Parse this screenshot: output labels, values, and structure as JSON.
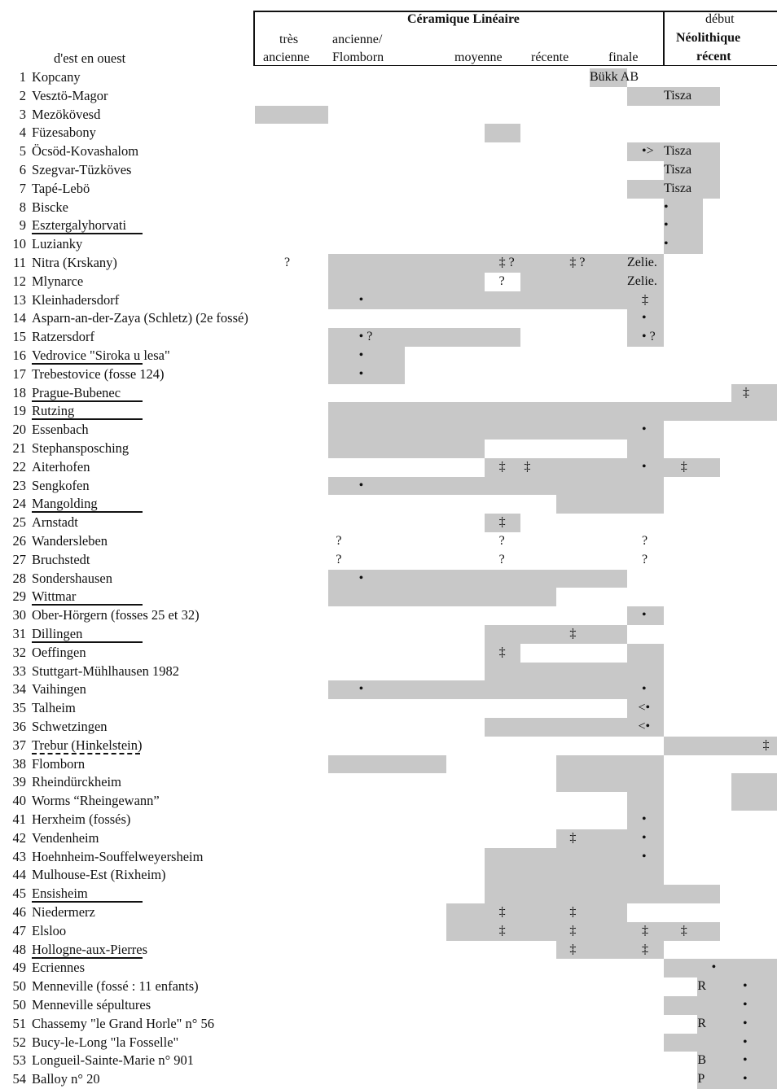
{
  "header": {
    "group_title": "Céramique Linéaire",
    "col_tres_1": "très",
    "col_tres_2": "ancienne",
    "col_anc_1": "ancienne/",
    "col_anc_2": "Flomborn",
    "col_moyenne": "moyenne",
    "col_recente": "récente",
    "col_finale": "finale",
    "neo_1": "début",
    "neo_2": "Néolithique",
    "neo_3": "récent",
    "order_label": "d'est en ouest"
  },
  "rows": [
    {
      "num": "1",
      "name": "Kopcany",
      "underline": "none",
      "shade": [
        [
          7,
          8
        ]
      ],
      "marks": [
        {
          "col": 7,
          "text": "Bükk AB"
        }
      ]
    },
    {
      "num": "2",
      "name": "Vesztö-Magor",
      "underline": "none",
      "shade": [
        [
          8,
          10
        ]
      ],
      "marks": [
        {
          "col": 9,
          "text": "Tisza"
        }
      ]
    },
    {
      "num": "3",
      "name": "Mezökövesd",
      "underline": "none",
      "shade": [
        [
          0,
          1
        ]
      ],
      "marks": []
    },
    {
      "num": "4",
      "name": "Füzesabony",
      "underline": "none",
      "shade": [
        [
          4,
          5
        ]
      ],
      "marks": []
    },
    {
      "num": "5",
      "name": "Öcsöd-Kovashalom",
      "underline": "none",
      "shade": [
        [
          8,
          10
        ]
      ],
      "marks": [
        {
          "col": 8.4,
          "text": "•>"
        },
        {
          "col": 9,
          "text": "Tisza"
        }
      ]
    },
    {
      "num": "6",
      "name": "Szegvar-Tüzköves",
      "underline": "none",
      "shade": [
        [
          9,
          10
        ]
      ],
      "marks": [
        {
          "col": 9,
          "text": "Tisza"
        }
      ]
    },
    {
      "num": "7",
      "name": "Tapé-Lebö",
      "underline": "none",
      "shade": [
        [
          8,
          10
        ]
      ],
      "marks": [
        {
          "col": 9,
          "text": "Tisza"
        }
      ]
    },
    {
      "num": "8",
      "name": "Biscke",
      "underline": "none",
      "shade": [
        [
          9,
          9.7
        ]
      ],
      "marks": [
        {
          "col": 9,
          "text": "•"
        }
      ]
    },
    {
      "num": "9",
      "name": "Esztergalyhorvati",
      "underline": "solid",
      "shade": [
        [
          9,
          9.7
        ]
      ],
      "marks": [
        {
          "col": 9,
          "text": "•"
        }
      ]
    },
    {
      "num": "10",
      "name": "Luzianky",
      "underline": "none",
      "shade": [
        [
          9,
          9.7
        ]
      ],
      "marks": [
        {
          "col": 9,
          "text": "•"
        }
      ]
    },
    {
      "num": "11",
      "name": "Nitra (Krskany)",
      "underline": "none",
      "shade": [
        [
          1,
          9
        ]
      ],
      "marks": [
        {
          "col": 0.4,
          "text": "?"
        },
        {
          "col": 4.4,
          "text": "‡ ?"
        },
        {
          "col": 6.4,
          "text": "‡ ?"
        },
        {
          "col": 8,
          "text": "Zelie."
        }
      ]
    },
    {
      "num": "12",
      "name": "Mlynarce",
      "underline": "none",
      "shade": [
        [
          1,
          4
        ],
        [
          5,
          9
        ]
      ],
      "marks": [
        {
          "col": 4.4,
          "text": "?"
        },
        {
          "col": 8,
          "text": "Zelie."
        }
      ]
    },
    {
      "num": "13",
      "name": "Kleinhadersdorf",
      "underline": "none",
      "shade": [
        [
          1,
          9
        ]
      ],
      "marks": [
        {
          "col": 1.4,
          "text": "•"
        },
        {
          "col": 8.4,
          "text": "‡"
        }
      ]
    },
    {
      "num": "14",
      "name": "Asparn-an-der-Zaya (Schletz) (2e fossé)",
      "underline": "none",
      "shade": [
        [
          8,
          9
        ]
      ],
      "marks": [
        {
          "col": 8.4,
          "text": "•"
        }
      ]
    },
    {
      "num": "15",
      "name": "Ratzersdorf",
      "underline": "none",
      "shade": [
        [
          1,
          5
        ],
        [
          8,
          9
        ]
      ],
      "marks": [
        {
          "col": 1.4,
          "text": "• ?"
        },
        {
          "col": 8.4,
          "text": "• ?"
        }
      ]
    },
    {
      "num": "16",
      "name": "Vedrovice \"Siroka u lesa\"",
      "underline": "solid",
      "shade": [
        [
          1,
          2
        ]
      ],
      "marks": [
        {
          "col": 1.4,
          "text": "•"
        }
      ]
    },
    {
      "num": "17",
      "name": "Trebestovice (fosse 124)",
      "underline": "none",
      "shade": [
        [
          1,
          2
        ]
      ],
      "marks": [
        {
          "col": 1.4,
          "text": "•"
        }
      ]
    },
    {
      "num": "18",
      "name": "Prague-Bubenec",
      "underline": "solid",
      "shade": [
        [
          10.2,
          11
        ]
      ],
      "marks": [
        {
          "col": 10.4,
          "text": "‡"
        }
      ]
    },
    {
      "num": "19",
      "name": "Rutzing",
      "underline": "solid",
      "shade": [
        [
          1,
          11
        ]
      ],
      "marks": []
    },
    {
      "num": "20",
      "name": "Essenbach",
      "underline": "none",
      "shade": [
        [
          1,
          9
        ]
      ],
      "marks": [
        {
          "col": 8.4,
          "text": "•"
        }
      ]
    },
    {
      "num": "21",
      "name": "Stephansposching",
      "underline": "none",
      "shade": [
        [
          1,
          4
        ],
        [
          8,
          9
        ]
      ],
      "marks": []
    },
    {
      "num": "22",
      "name": "Aiterhofen",
      "underline": "none",
      "shade": [
        [
          4,
          10
        ]
      ],
      "marks": [
        {
          "col": 4.4,
          "text": "‡"
        },
        {
          "col": 5.1,
          "text": "‡"
        },
        {
          "col": 8.4,
          "text": "•"
        },
        {
          "col": 9.3,
          "text": "‡"
        }
      ]
    },
    {
      "num": "23",
      "name": "Sengkofen",
      "underline": "none",
      "shade": [
        [
          1,
          9
        ]
      ],
      "marks": [
        {
          "col": 1.4,
          "text": "•"
        }
      ]
    },
    {
      "num": "24",
      "name": "Mangolding",
      "underline": "solid",
      "shade": [
        [
          6,
          9
        ]
      ],
      "marks": []
    },
    {
      "num": "25",
      "name": "Arnstadt",
      "underline": "none",
      "shade": [
        [
          4,
          5
        ]
      ],
      "marks": [
        {
          "col": 4.4,
          "text": "‡"
        }
      ]
    },
    {
      "num": "26",
      "name": "Wandersleben",
      "underline": "none",
      "shade": [],
      "marks": [
        {
          "col": 1.1,
          "text": "?"
        },
        {
          "col": 4.4,
          "text": "?"
        },
        {
          "col": 8.4,
          "text": "?"
        }
      ]
    },
    {
      "num": "27",
      "name": "Bruchstedt",
      "underline": "none",
      "shade": [],
      "marks": [
        {
          "col": 1.1,
          "text": "?"
        },
        {
          "col": 4.4,
          "text": "?"
        },
        {
          "col": 8.4,
          "text": "?"
        }
      ]
    },
    {
      "num": "28",
      "name": "Sondershausen",
      "underline": "none",
      "shade": [
        [
          1,
          8
        ]
      ],
      "marks": [
        {
          "col": 1.4,
          "text": "•"
        }
      ]
    },
    {
      "num": "29",
      "name": "Wittmar",
      "underline": "solid",
      "shade": [
        [
          1,
          6
        ]
      ],
      "marks": []
    },
    {
      "num": "30",
      "name": "Ober-Hörgern (fosses 25 et 32)",
      "underline": "none",
      "shade": [
        [
          8,
          9
        ]
      ],
      "marks": [
        {
          "col": 8.4,
          "text": "•"
        }
      ]
    },
    {
      "num": "31",
      "name": "Dillingen",
      "underline": "solid",
      "shade": [
        [
          4,
          8
        ]
      ],
      "marks": [
        {
          "col": 6.4,
          "text": "‡"
        }
      ]
    },
    {
      "num": "32",
      "name": "Oeffingen",
      "underline": "none",
      "shade": [
        [
          4,
          5
        ],
        [
          8,
          9
        ]
      ],
      "marks": [
        {
          "col": 4.4,
          "text": "‡"
        }
      ]
    },
    {
      "num": "33",
      "name": "Stuttgart-Mühlhausen 1982",
      "underline": "none",
      "shade": [
        [
          4,
          9
        ]
      ],
      "marks": []
    },
    {
      "num": "34",
      "name": "Vaihingen",
      "underline": "none",
      "shade": [
        [
          1,
          9
        ]
      ],
      "marks": [
        {
          "col": 1.4,
          "text": "•"
        },
        {
          "col": 8.4,
          "text": "•"
        }
      ]
    },
    {
      "num": "35",
      "name": "Talheim",
      "underline": "none",
      "shade": [
        [
          8,
          9
        ]
      ],
      "marks": [
        {
          "col": 8.3,
          "text": "<•"
        }
      ]
    },
    {
      "num": "36",
      "name": "Schwetzingen",
      "underline": "none",
      "shade": [
        [
          4,
          9
        ]
      ],
      "marks": [
        {
          "col": 8.3,
          "text": "<•"
        }
      ]
    },
    {
      "num": "37",
      "name": "Trebur (Hinkelstein)",
      "underline": "dash",
      "shade": [
        [
          9,
          11
        ]
      ],
      "marks": [
        {
          "col": 10.75,
          "text": "‡"
        }
      ]
    },
    {
      "num": "38",
      "name": "Flomborn",
      "underline": "none",
      "shade": [
        [
          1,
          3
        ],
        [
          6,
          9
        ]
      ],
      "marks": []
    },
    {
      "num": "39",
      "name": "Rheindürckheim",
      "underline": "none",
      "shade": [
        [
          6,
          9
        ],
        [
          10.2,
          11
        ]
      ],
      "marks": []
    },
    {
      "num": "40",
      "name": "Worms “Rheingewann”",
      "underline": "none",
      "shade": [
        [
          8,
          9
        ],
        [
          10.2,
          11
        ]
      ],
      "marks": []
    },
    {
      "num": "41",
      "name": "Herxheim (fossés)",
      "underline": "none",
      "shade": [
        [
          8,
          9
        ]
      ],
      "marks": [
        {
          "col": 8.4,
          "text": "•"
        }
      ]
    },
    {
      "num": "42",
      "name": "Vendenheim",
      "underline": "none",
      "shade": [
        [
          6,
          9
        ]
      ],
      "marks": [
        {
          "col": 6.4,
          "text": "‡"
        },
        {
          "col": 8.4,
          "text": "•"
        }
      ]
    },
    {
      "num": "43",
      "name": "Hoehnheim-Souffelweyersheim",
      "underline": "none",
      "shade": [
        [
          4,
          9
        ]
      ],
      "marks": [
        {
          "col": 8.4,
          "text": "•"
        }
      ]
    },
    {
      "num": "44",
      "name": "Mulhouse-Est (Rixheim)",
      "underline": "none",
      "shade": [
        [
          4,
          9
        ]
      ],
      "marks": []
    },
    {
      "num": "45",
      "name": "Ensisheim",
      "underline": "solid",
      "shade": [
        [
          4,
          10
        ]
      ],
      "marks": []
    },
    {
      "num": "46",
      "name": "Niedermerz",
      "underline": "none",
      "shade": [
        [
          3,
          8
        ]
      ],
      "marks": [
        {
          "col": 4.4,
          "text": "‡"
        },
        {
          "col": 6.4,
          "text": "‡"
        }
      ]
    },
    {
      "num": "47",
      "name": "Elsloo",
      "underline": "none",
      "shade": [
        [
          3,
          10
        ]
      ],
      "marks": [
        {
          "col": 4.4,
          "text": "‡"
        },
        {
          "col": 6.4,
          "text": "‡"
        },
        {
          "col": 8.4,
          "text": "‡"
        },
        {
          "col": 9.3,
          "text": "‡"
        }
      ]
    },
    {
      "num": "48",
      "name": "Hollogne-aux-Pierres",
      "underline": "solid",
      "shade": [
        [
          6,
          9
        ]
      ],
      "marks": [
        {
          "col": 6.4,
          "text": "‡"
        },
        {
          "col": 8.4,
          "text": "‡"
        }
      ]
    },
    {
      "num": "49",
      "name": "Ecriennes",
      "underline": "none",
      "shade": [
        [
          9,
          11
        ]
      ],
      "marks": [
        {
          "col": 9.85,
          "text": "•"
        }
      ]
    },
    {
      "num": "50",
      "name": "Menneville (fossé : 11 enfants)",
      "underline": "none",
      "shade": [
        [
          9.6,
          11
        ]
      ],
      "marks": [
        {
          "col": 9.6,
          "text": "R"
        },
        {
          "col": 10.4,
          "text": "•"
        }
      ]
    },
    {
      "num": "50",
      "name": "Menneville sépultures",
      "underline": "none",
      "shade": [
        [
          9,
          11
        ]
      ],
      "marks": [
        {
          "col": 10.4,
          "text": "•"
        }
      ]
    },
    {
      "num": "51",
      "name": "Chassemy \"le Grand Horle\" n° 56",
      "underline": "none",
      "shade": [
        [
          9.6,
          11
        ]
      ],
      "marks": [
        {
          "col": 9.6,
          "text": "R"
        },
        {
          "col": 10.4,
          "text": "•"
        }
      ]
    },
    {
      "num": "52",
      "name": "Bucy-le-Long \"la Fosselle\"",
      "underline": "none",
      "shade": [
        [
          9,
          11
        ]
      ],
      "marks": [
        {
          "col": 10.4,
          "text": "•"
        }
      ]
    },
    {
      "num": "53",
      "name": "Longueil-Sainte-Marie n° 901",
      "underline": "none",
      "shade": [
        [
          9.6,
          11
        ]
      ],
      "marks": [
        {
          "col": 9.6,
          "text": "B"
        },
        {
          "col": 10.4,
          "text": "•"
        }
      ]
    },
    {
      "num": "54",
      "name": "Balloy n° 20",
      "underline": "none",
      "shade": [
        [
          9.6,
          11
        ]
      ],
      "marks": [
        {
          "col": 9.6,
          "text": "P"
        },
        {
          "col": 10.4,
          "text": "•"
        }
      ]
    }
  ]
}
